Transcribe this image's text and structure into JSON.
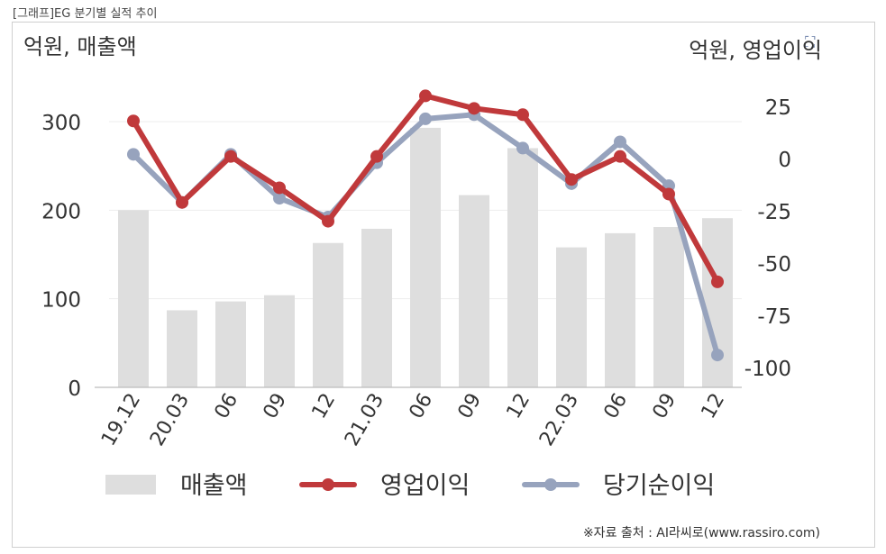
{
  "caption": "[그래프]EG 분기별 실적 추이",
  "source": "※자료 출처 : AI라씨로(www.rassiro.com)",
  "icons": {
    "corner": "scan-icon"
  },
  "chart_data": {
    "type": "bar",
    "categories": [
      "19.12",
      "20.03",
      "06",
      "09",
      "12",
      "21.03",
      "06",
      "09",
      "12",
      "22.03",
      "06",
      "09",
      "12"
    ],
    "left_axis": {
      "label": "억원, 매출액",
      "range": [
        0,
        300
      ],
      "ticks": [
        0,
        100,
        200,
        300
      ]
    },
    "right_axis": {
      "label": "억원, 영업이익",
      "range": [
        -108,
        32
      ],
      "ticks": [
        25,
        0,
        -25,
        -50,
        -75,
        -100
      ]
    },
    "series": [
      {
        "name": "매출액",
        "type": "bar",
        "axis": "left",
        "color": "#dedede",
        "values": [
          200,
          87,
          97,
          104,
          163,
          179,
          293,
          217,
          270,
          158,
          174,
          181,
          191
        ]
      },
      {
        "name": "영업이익",
        "type": "line",
        "axis": "right",
        "color": "#c0393b",
        "values": [
          18,
          -21,
          1,
          -14,
          -30,
          1,
          30,
          24,
          21,
          -10,
          1,
          -17,
          -59
        ]
      },
      {
        "name": "당기순이익",
        "type": "line",
        "axis": "right",
        "color": "#97a3bd",
        "values": [
          2,
          -21,
          2,
          -19,
          -28,
          -2,
          19,
          21,
          5,
          -12,
          8,
          -13,
          -94
        ]
      }
    ],
    "grid": "horizontal",
    "legend": "bottom"
  }
}
